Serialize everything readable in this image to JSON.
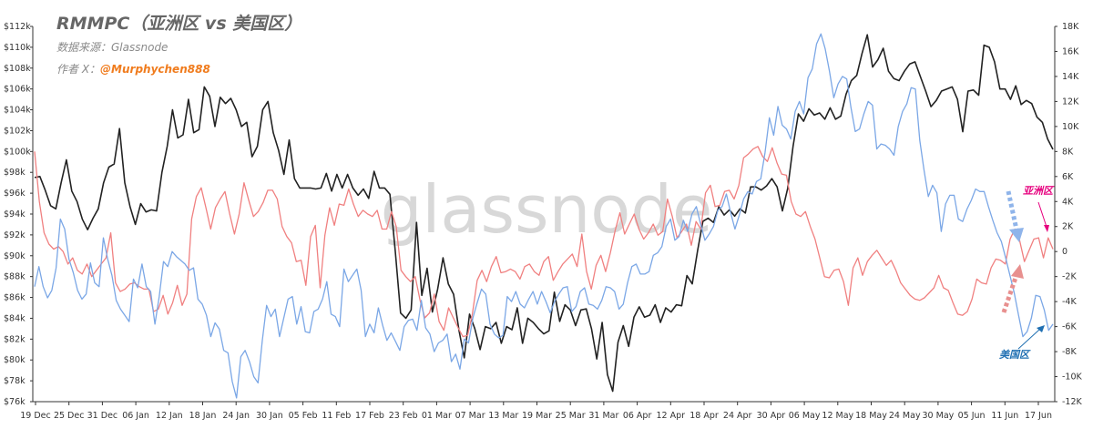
{
  "title": "RMMPC（亚洲区 vs 美国区）",
  "source_text": "数据来源：Glassnode",
  "author_prefix": "作者 X：",
  "author_handle": "@Murphychen888",
  "watermark": "glassnode",
  "colors": {
    "price": "#222222",
    "asia": "#f08080",
    "us": "#7ba7e6",
    "asia_label": "#e6007e",
    "us_label": "#1f6fb2",
    "handle": "#f07c1e",
    "axis": "#333333"
  },
  "chart_data": {
    "type": "line",
    "x_tick_labels": [
      "19 Dec",
      "25 Dec",
      "31 Dec",
      "06 Jan",
      "12 Jan",
      "18 Jan",
      "24 Jan",
      "30 Jan",
      "05 Feb",
      "11 Feb",
      "17 Feb",
      "23 Feb",
      "01 Mar",
      "07 Mar",
      "13 Mar",
      "19 Mar",
      "25 Mar",
      "31 Mar",
      "06 Apr",
      "12 Apr",
      "18 Apr",
      "24 Apr",
      "30 Apr",
      "06 May",
      "12 May",
      "18 May",
      "24 May",
      "30 May",
      "05 Jun",
      "11 Jun",
      "17 Jun"
    ],
    "y_left": {
      "min": 76000,
      "max": 112000,
      "ticks": [
        "$76k",
        "$78k",
        "$80k",
        "$82k",
        "$84k",
        "$86k",
        "$88k",
        "$90k",
        "$92k",
        "$94k",
        "$96k",
        "$98k",
        "$100k",
        "$102k",
        "$104k",
        "$106k",
        "$108k",
        "$110k",
        "$112k"
      ]
    },
    "y_right": {
      "min": -12000,
      "max": 18000,
      "ticks": [
        "-12K",
        "-10K",
        "-8K",
        "-6K",
        "-4K",
        "-2K",
        "0",
        "2K",
        "4K",
        "6K",
        "8K",
        "10K",
        "12K",
        "14K",
        "16K",
        "18K"
      ]
    },
    "series": [
      {
        "key": "price",
        "axis": "left",
        "values": [
          97500,
          97600,
          96300,
          94800,
          94500,
          97000,
          99200,
          96200,
          95200,
          93500,
          92500,
          93600,
          94500,
          97000,
          98500,
          98800,
          102200,
          97000,
          94700,
          93000,
          95000,
          94200,
          94400,
          94300,
          98000,
          100500,
          104000,
          101300,
          101600,
          105000,
          101800,
          102100,
          106200,
          105300,
          102400,
          105200,
          104600,
          105100,
          104000,
          102400,
          102800,
          99500,
          100500,
          104000,
          104800,
          101800,
          100100,
          97800,
          101100,
          97400,
          96500,
          96500,
          96500,
          96400,
          96500,
          97900,
          96200,
          97800,
          96500,
          97800,
          96500,
          95800,
          96400,
          95500,
          98100,
          96500,
          96500,
          95900,
          90400,
          84500,
          84000,
          84800,
          93200,
          86200,
          88800,
          84600,
          86800,
          89800,
          87300,
          86300,
          82900,
          80200,
          84400,
          83000,
          81000,
          83200,
          83000,
          83600,
          81600,
          83200,
          82900,
          85000,
          81600,
          84000,
          83600,
          83000,
          82500,
          82800,
          86500,
          83700,
          85300,
          84800,
          83300,
          84800,
          84900,
          83000,
          80100,
          83600,
          78600,
          77000,
          81700,
          83300,
          81300,
          84100,
          85100,
          84100,
          84300,
          85300,
          83600,
          85000,
          84600,
          85300,
          85200,
          88100,
          87300,
          90500,
          93300,
          93600,
          93200,
          94700,
          93900,
          94400,
          93800,
          94500,
          94100,
          96600,
          96600,
          96300,
          96700,
          97400,
          96600,
          94300,
          96500,
          100500,
          103600,
          102900,
          104100,
          103500,
          103700,
          103100,
          104200,
          103100,
          103400,
          105500,
          106800,
          107300,
          109400,
          111200,
          108100,
          108800,
          109900,
          107700,
          107000,
          106800,
          107700,
          108400,
          108600,
          107200,
          105800,
          104300,
          104900,
          105800,
          106000,
          106200,
          105000,
          101900,
          105800,
          105900,
          105400,
          110200,
          110000,
          108600,
          106000,
          106000,
          105000,
          106300,
          104500,
          104900,
          104600,
          103300,
          102800,
          101200,
          100200
        ]
      },
      {
        "key": "asia",
        "axis": "right",
        "values": [
          8000,
          4000,
          1500,
          600,
          200,
          400,
          0,
          -1000,
          -500,
          -1500,
          -1800,
          -1000,
          -2000,
          -1500,
          -1000,
          -500,
          1500,
          -2500,
          -3200,
          -3000,
          -2600,
          -2500,
          -2800,
          -3000,
          -3000,
          -4800,
          -4600,
          -3500,
          -5000,
          -4100,
          -2700,
          -4300,
          -3400,
          2600,
          4400,
          5100,
          3500,
          1800,
          3500,
          4200,
          4800,
          3000,
          1400,
          3000,
          5500,
          4100,
          2800,
          3200,
          3900,
          4900,
          4900,
          4200,
          2000,
          1200,
          700,
          -800,
          -700,
          -2700,
          1200,
          2100,
          -2900,
          1300,
          3500,
          2100,
          3800,
          3700,
          5000,
          3800,
          2800,
          3300,
          3000,
          2800,
          3300,
          1800,
          1800,
          3200,
          2000,
          -1500,
          -2000,
          -2400,
          -2000,
          -3900,
          -5300,
          -4900,
          -3400,
          -5600,
          -6300,
          -4500,
          -5300,
          -6100,
          -6800,
          -6700,
          -5000,
          -2300,
          -1500,
          -2400,
          -1200,
          -400,
          -1700,
          -1600,
          -1400,
          -1600,
          -2200,
          -1200,
          -1000,
          -1600,
          -1900,
          -800,
          -400,
          -2300,
          -1600,
          -1000,
          -600,
          -200,
          -1200,
          1400,
          -1600,
          -3000,
          -1100,
          -300,
          -1600,
          -100,
          1700,
          3100,
          1400,
          2200,
          3000,
          1800,
          1000,
          1500,
          2200,
          1300,
          1600,
          4200,
          2800,
          1100,
          1600,
          2200,
          500,
          2400,
          1800,
          4700,
          5300,
          3600,
          3700,
          4800,
          4900,
          4200,
          5300,
          7500,
          7800,
          8200,
          8400,
          7600,
          7200,
          8300,
          7100,
          6200,
          6100,
          4000,
          3000,
          2800,
          3200,
          2000,
          1000,
          -500,
          -2000,
          -2100,
          -1500,
          -1400,
          -2400,
          -4300,
          -1300,
          -500,
          -1900,
          -800,
          -300,
          100,
          -500,
          -1100,
          -700,
          -1500,
          -2500,
          -3000,
          -3500,
          -3800,
          -3900,
          -3700,
          -3300,
          -2900,
          -1900,
          -2900,
          -3100,
          -4100,
          -5000,
          -5100,
          -4800,
          -3800,
          -2200,
          -2500,
          -2600,
          -1300,
          -600,
          -700,
          -1000,
          1000,
          1800,
          900,
          -800,
          100,
          1000,
          1100,
          -500,
          1100,
          200
        ]
      },
      {
        "key": "us",
        "axis": "right",
        "values": [
          -2800,
          -1200,
          -2800,
          -3700,
          -3100,
          -1300,
          2600,
          1800,
          -600,
          -1700,
          -3100,
          -3800,
          -3400,
          -900,
          -2500,
          -2800,
          1100,
          -600,
          -1900,
          -3900,
          -4600,
          -5100,
          -5600,
          -2200,
          -2900,
          -1000,
          -2800,
          -3200,
          -5800,
          -3600,
          -800,
          -1200,
          0,
          -400,
          -700,
          -1000,
          -1500,
          -1300,
          -3800,
          -4200,
          -5100,
          -6800,
          -5700,
          -6200,
          -7900,
          -8100,
          -10400,
          -11700,
          -8400,
          -7900,
          -8800,
          -10000,
          -10500,
          -7100,
          -4300,
          -5200,
          -4600,
          -6800,
          -5300,
          -3800,
          -3600,
          -5800,
          -4400,
          -6400,
          -6500,
          -4800,
          -4600,
          -3800,
          -2400,
          -5000,
          -5200,
          -6000,
          -1400,
          -2400,
          -1900,
          -1400,
          -3100,
          -6800,
          -5800,
          -6500,
          -4500,
          -5900,
          -7100,
          -6500,
          -7200,
          -7900,
          -6000,
          -5500,
          -5400,
          -6300,
          -3900,
          -6100,
          -6600,
          -8000,
          -7300,
          -7100,
          -6600,
          -8800,
          -8200,
          -9400,
          -7000,
          -7300,
          -5300,
          -4100,
          -3000,
          -3400,
          -5800,
          -6600,
          -6900,
          -6700,
          -3600,
          -4000,
          -3200,
          -4200,
          -4500,
          -3800,
          -3200,
          -4200,
          -3200,
          -4000,
          -4900,
          -4000,
          -3400,
          -2900,
          -2800,
          -4800,
          -4400,
          -3200,
          -2900,
          -4200,
          -4300,
          -4600,
          -3900,
          -2800,
          -2900,
          -3200,
          -4600,
          -4200,
          -2500,
          -1200,
          -1000,
          -1800,
          -1800,
          -1600,
          -300,
          -100,
          400,
          2000,
          2600,
          900,
          1200,
          2500,
          1600,
          3000,
          3600,
          2200,
          900,
          1400,
          2000,
          3300,
          3600,
          4600,
          3100,
          1800,
          2900,
          4200,
          4800,
          4600,
          5600,
          5800,
          7900,
          10700,
          9300,
          11600,
          10100,
          9800,
          9000,
          11200,
          12000,
          11000,
          13900,
          14600,
          16600,
          17400,
          16200,
          14400,
          12300,
          13400,
          14000,
          13800,
          11500,
          9600,
          9800,
          11000,
          12000,
          11700,
          8200,
          8600,
          8500,
          8200,
          7700,
          10000,
          11200,
          11800,
          13100,
          13000,
          8900,
          6500,
          4400,
          5300,
          4700,
          1600,
          3800,
          4500,
          4500,
          2600,
          2400,
          3400,
          4100,
          5000,
          4800,
          4800,
          3600,
          2500,
          1500,
          800,
          -500,
          -1900,
          -3300,
          -5100,
          -6800,
          -6400,
          -5300,
          -3500,
          -3600,
          -4700,
          -6300,
          -5800
        ]
      }
    ],
    "annotations": {
      "asia_label": "亚洲区",
      "us_label": "美国区"
    }
  }
}
